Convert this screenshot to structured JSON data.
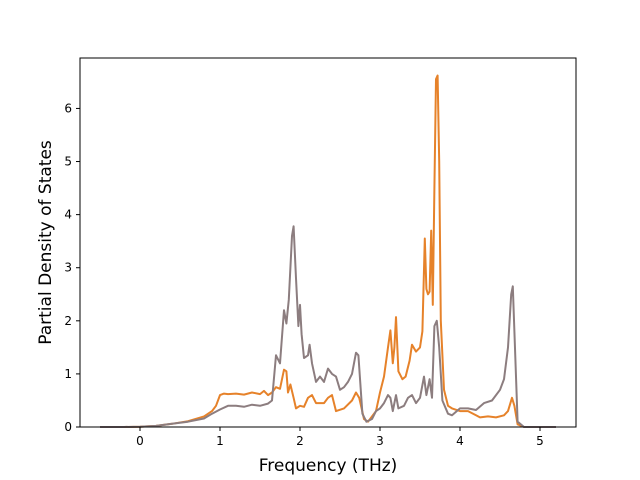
{
  "chart_data": {
    "type": "line",
    "title": "",
    "xlabel": "Frequency (THz)",
    "ylabel": "Partial Density of States",
    "xlim": [
      -0.75,
      5.45
    ],
    "ylim": [
      0,
      6.95
    ],
    "xticks": [
      0,
      1,
      2,
      3,
      4,
      5
    ],
    "yticks": [
      0,
      1,
      2,
      3,
      4,
      5,
      6
    ],
    "grid": false,
    "colors": {
      "orange": "#e6822a",
      "gray": "#8c7d7f"
    },
    "series": [
      {
        "color": "#e6822a",
        "points": [
          [
            -0.5,
            0
          ],
          [
            -0.2,
            0
          ],
          [
            0.0,
            0.005
          ],
          [
            0.2,
            0.02
          ],
          [
            0.4,
            0.06
          ],
          [
            0.6,
            0.11
          ],
          [
            0.8,
            0.2
          ],
          [
            0.9,
            0.3
          ],
          [
            0.95,
            0.4
          ],
          [
            1.0,
            0.6
          ],
          [
            1.05,
            0.63
          ],
          [
            1.1,
            0.62
          ],
          [
            1.2,
            0.63
          ],
          [
            1.3,
            0.61
          ],
          [
            1.4,
            0.65
          ],
          [
            1.5,
            0.62
          ],
          [
            1.55,
            0.68
          ],
          [
            1.6,
            0.6
          ],
          [
            1.65,
            0.65
          ],
          [
            1.7,
            0.75
          ],
          [
            1.75,
            0.72
          ],
          [
            1.8,
            1.08
          ],
          [
            1.83,
            1.05
          ],
          [
            1.85,
            0.65
          ],
          [
            1.88,
            0.8
          ],
          [
            1.92,
            0.55
          ],
          [
            1.95,
            0.35
          ],
          [
            2.0,
            0.4
          ],
          [
            2.05,
            0.38
          ],
          [
            2.1,
            0.55
          ],
          [
            2.15,
            0.6
          ],
          [
            2.2,
            0.45
          ],
          [
            2.3,
            0.45
          ],
          [
            2.35,
            0.55
          ],
          [
            2.4,
            0.6
          ],
          [
            2.45,
            0.3
          ],
          [
            2.55,
            0.35
          ],
          [
            2.65,
            0.5
          ],
          [
            2.7,
            0.65
          ],
          [
            2.74,
            0.55
          ],
          [
            2.8,
            0.15
          ],
          [
            2.85,
            0.1
          ],
          [
            2.95,
            0.3
          ],
          [
            3.0,
            0.65
          ],
          [
            3.05,
            0.95
          ],
          [
            3.1,
            1.5
          ],
          [
            3.13,
            1.82
          ],
          [
            3.16,
            1.2
          ],
          [
            3.18,
            1.5
          ],
          [
            3.2,
            2.07
          ],
          [
            3.23,
            1.05
          ],
          [
            3.28,
            0.9
          ],
          [
            3.32,
            0.95
          ],
          [
            3.37,
            1.25
          ],
          [
            3.4,
            1.55
          ],
          [
            3.45,
            1.42
          ],
          [
            3.5,
            1.5
          ],
          [
            3.53,
            1.8
          ],
          [
            3.56,
            3.55
          ],
          [
            3.58,
            2.6
          ],
          [
            3.6,
            2.5
          ],
          [
            3.62,
            2.55
          ],
          [
            3.64,
            3.7
          ],
          [
            3.66,
            2.3
          ],
          [
            3.68,
            4.5
          ],
          [
            3.7,
            6.55
          ],
          [
            3.72,
            6.62
          ],
          [
            3.74,
            5.0
          ],
          [
            3.76,
            2.0
          ],
          [
            3.8,
            0.7
          ],
          [
            3.85,
            0.4
          ],
          [
            3.9,
            0.35
          ],
          [
            4.0,
            0.3
          ],
          [
            4.1,
            0.3
          ],
          [
            4.2,
            0.22
          ],
          [
            4.25,
            0.18
          ],
          [
            4.35,
            0.2
          ],
          [
            4.45,
            0.18
          ],
          [
            4.55,
            0.22
          ],
          [
            4.6,
            0.3
          ],
          [
            4.65,
            0.55
          ],
          [
            4.68,
            0.4
          ],
          [
            4.72,
            0.05
          ],
          [
            4.8,
            0
          ],
          [
            5.2,
            0
          ]
        ]
      },
      {
        "color": "#8c7d7f",
        "points": [
          [
            -0.5,
            0
          ],
          [
            -0.2,
            0
          ],
          [
            0.0,
            0.005
          ],
          [
            0.2,
            0.02
          ],
          [
            0.4,
            0.06
          ],
          [
            0.6,
            0.1
          ],
          [
            0.8,
            0.16
          ],
          [
            0.9,
            0.25
          ],
          [
            1.0,
            0.33
          ],
          [
            1.1,
            0.4
          ],
          [
            1.2,
            0.4
          ],
          [
            1.3,
            0.38
          ],
          [
            1.4,
            0.42
          ],
          [
            1.5,
            0.4
          ],
          [
            1.6,
            0.44
          ],
          [
            1.65,
            0.5
          ],
          [
            1.7,
            1.35
          ],
          [
            1.75,
            1.2
          ],
          [
            1.8,
            2.2
          ],
          [
            1.83,
            1.95
          ],
          [
            1.86,
            2.4
          ],
          [
            1.9,
            3.6
          ],
          [
            1.92,
            3.78
          ],
          [
            1.95,
            2.8
          ],
          [
            1.98,
            1.9
          ],
          [
            2.0,
            2.3
          ],
          [
            2.02,
            1.75
          ],
          [
            2.05,
            1.3
          ],
          [
            2.1,
            1.35
          ],
          [
            2.12,
            1.55
          ],
          [
            2.15,
            1.2
          ],
          [
            2.2,
            0.85
          ],
          [
            2.25,
            0.95
          ],
          [
            2.3,
            0.85
          ],
          [
            2.35,
            1.1
          ],
          [
            2.4,
            1.0
          ],
          [
            2.45,
            0.95
          ],
          [
            2.5,
            0.7
          ],
          [
            2.55,
            0.75
          ],
          [
            2.6,
            0.85
          ],
          [
            2.65,
            1.0
          ],
          [
            2.7,
            1.4
          ],
          [
            2.73,
            1.35
          ],
          [
            2.78,
            0.25
          ],
          [
            2.83,
            0.1
          ],
          [
            2.9,
            0.15
          ],
          [
            2.95,
            0.3
          ],
          [
            3.0,
            0.35
          ],
          [
            3.05,
            0.45
          ],
          [
            3.1,
            0.6
          ],
          [
            3.13,
            0.55
          ],
          [
            3.16,
            0.3
          ],
          [
            3.2,
            0.6
          ],
          [
            3.23,
            0.35
          ],
          [
            3.3,
            0.4
          ],
          [
            3.35,
            0.55
          ],
          [
            3.4,
            0.6
          ],
          [
            3.45,
            0.45
          ],
          [
            3.5,
            0.55
          ],
          [
            3.55,
            0.95
          ],
          [
            3.58,
            0.6
          ],
          [
            3.62,
            0.9
          ],
          [
            3.65,
            0.55
          ],
          [
            3.68,
            1.9
          ],
          [
            3.71,
            2.0
          ],
          [
            3.74,
            1.5
          ],
          [
            3.78,
            0.5
          ],
          [
            3.85,
            0.25
          ],
          [
            3.9,
            0.22
          ],
          [
            4.0,
            0.35
          ],
          [
            4.1,
            0.35
          ],
          [
            4.2,
            0.32
          ],
          [
            4.3,
            0.45
          ],
          [
            4.4,
            0.5
          ],
          [
            4.5,
            0.7
          ],
          [
            4.55,
            0.9
          ],
          [
            4.6,
            1.5
          ],
          [
            4.64,
            2.5
          ],
          [
            4.66,
            2.65
          ],
          [
            4.68,
            1.8
          ],
          [
            4.72,
            0.1
          ],
          [
            4.8,
            0
          ],
          [
            5.2,
            0
          ]
        ]
      }
    ]
  }
}
